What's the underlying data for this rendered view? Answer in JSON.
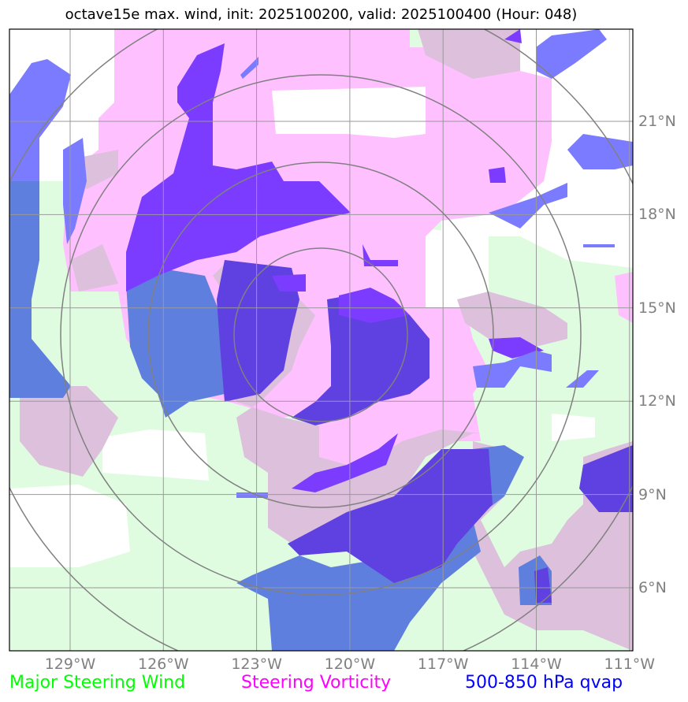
{
  "title": "octave15e max. wind, init: 2025100200, valid: 2025100400 (Hour: 048)",
  "lon_ticks": [
    {
      "value": 129,
      "label": "129°W"
    },
    {
      "value": 126,
      "label": "126°W"
    },
    {
      "value": 123,
      "label": "123°W"
    },
    {
      "value": 120,
      "label": "120°W"
    },
    {
      "value": 117,
      "label": "117°W"
    },
    {
      "value": 114,
      "label": "114°W"
    },
    {
      "value": 111,
      "label": "111°W"
    }
  ],
  "lat_ticks": [
    {
      "value": 21,
      "label": "21°N"
    },
    {
      "value": 18,
      "label": "18°N"
    },
    {
      "value": 15,
      "label": "15°N"
    },
    {
      "value": 12,
      "label": "12°N"
    },
    {
      "value": 9,
      "label": "9°N"
    },
    {
      "value": 6,
      "label": "6°N"
    }
  ],
  "legend": [
    {
      "label": "Major Steering Wind",
      "color": "#00ff00"
    },
    {
      "label": "Steering Vorticity",
      "color": "#ff00ff"
    },
    {
      "label": "500-850 hPa qvap",
      "color": "#0000ff"
    }
  ],
  "colors": {
    "wind": "#e0fce0",
    "vorticity": "#ffc0ff",
    "overlap": "#dcc0dc",
    "qvap": "#7b7bff",
    "qvap_vort": "#7b3cff",
    "qvap_all": "#5f40e0",
    "qvap_wind": "#5f7fdf"
  }
}
